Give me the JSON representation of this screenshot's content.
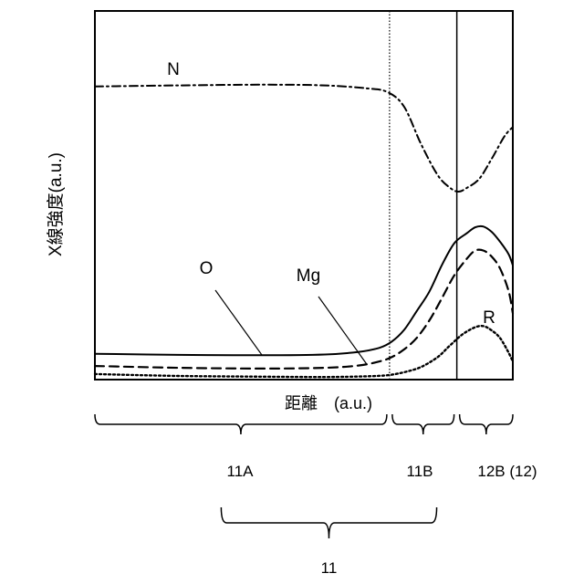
{
  "chart_data": {
    "type": "line",
    "ylabel": "X線強度(a.u.)",
    "xlabel": "距離　(a.u.)",
    "xlim": [
      0,
      100
    ],
    "ylim": [
      0,
      100
    ],
    "boundaries": [
      {
        "x": 70.5,
        "style": "dotted"
      },
      {
        "x": 86.6,
        "style": "solid"
      }
    ],
    "series": [
      {
        "name": "N",
        "style": "dash-dot",
        "x": [
          0,
          20,
          40,
          55,
          65,
          70,
          74,
          78,
          82,
          85,
          87,
          89,
          92,
          95,
          98,
          100
        ],
        "y": [
          79.5,
          79.8,
          80,
          79.8,
          79.0,
          78.0,
          74.0,
          64.0,
          55.5,
          52.0,
          51.0,
          52.0,
          54.5,
          60.0,
          66.0,
          68.5
        ]
      },
      {
        "name": "O",
        "style": "solid",
        "x": [
          0,
          20,
          40,
          55,
          63,
          68,
          71,
          74,
          77,
          80,
          83,
          86,
          89,
          91,
          93,
          95,
          97,
          99,
          100
        ],
        "y": [
          7.0,
          6.7,
          6.6,
          6.8,
          7.5,
          8.6,
          10.3,
          13.5,
          18.6,
          23.8,
          31.0,
          37.0,
          39.7,
          41.3,
          41.5,
          40.0,
          37.3,
          34.0,
          31.0
        ]
      },
      {
        "name": "Mg",
        "style": "dashed",
        "x": [
          0,
          20,
          40,
          55,
          63,
          68,
          71,
          74,
          77,
          80,
          83,
          86,
          89,
          91,
          93,
          95,
          97,
          99,
          100
        ],
        "y": [
          3.7,
          3.2,
          3.0,
          3.2,
          3.8,
          4.9,
          6.1,
          8.2,
          11.3,
          16.0,
          22.0,
          28.3,
          32.8,
          35.0,
          35.0,
          33.3,
          30.0,
          24.0,
          18.0
        ]
      },
      {
        "name": "R",
        "style": "dotted",
        "x": [
          0,
          20,
          40,
          55,
          65,
          70,
          74,
          78,
          82,
          85,
          88,
          91,
          93,
          95,
          97,
          99,
          100
        ],
        "y": [
          1.5,
          1.0,
          0.8,
          0.7,
          0.9,
          1.2,
          2.0,
          3.4,
          6.1,
          9.3,
          12.3,
          14.2,
          14.5,
          13.3,
          11.2,
          7.3,
          4.9
        ]
      }
    ],
    "regions": [
      {
        "label": "11A",
        "from": 0,
        "to": 70.5
      },
      {
        "label": "11B",
        "from": 70.5,
        "to": 86.6
      },
      {
        "label": "12B (12)",
        "from": 86.6,
        "to": 100
      }
    ],
    "group": {
      "label": "11",
      "from": 30,
      "to": 82
    }
  }
}
